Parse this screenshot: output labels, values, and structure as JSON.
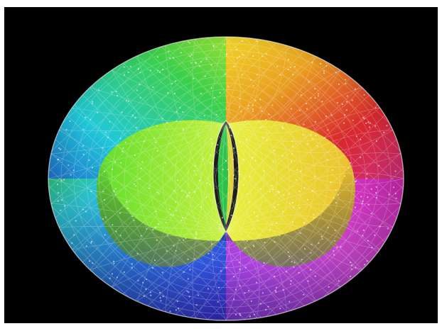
{
  "image": {
    "background_color": "#000000",
    "page_color": "#ffffff",
    "hue_colors": [
      "#00ff00",
      "#ffff00",
      "#ff0000",
      "#ff00ff",
      "#0000ff",
      "#00ffff",
      "#00ff00"
    ]
  }
}
